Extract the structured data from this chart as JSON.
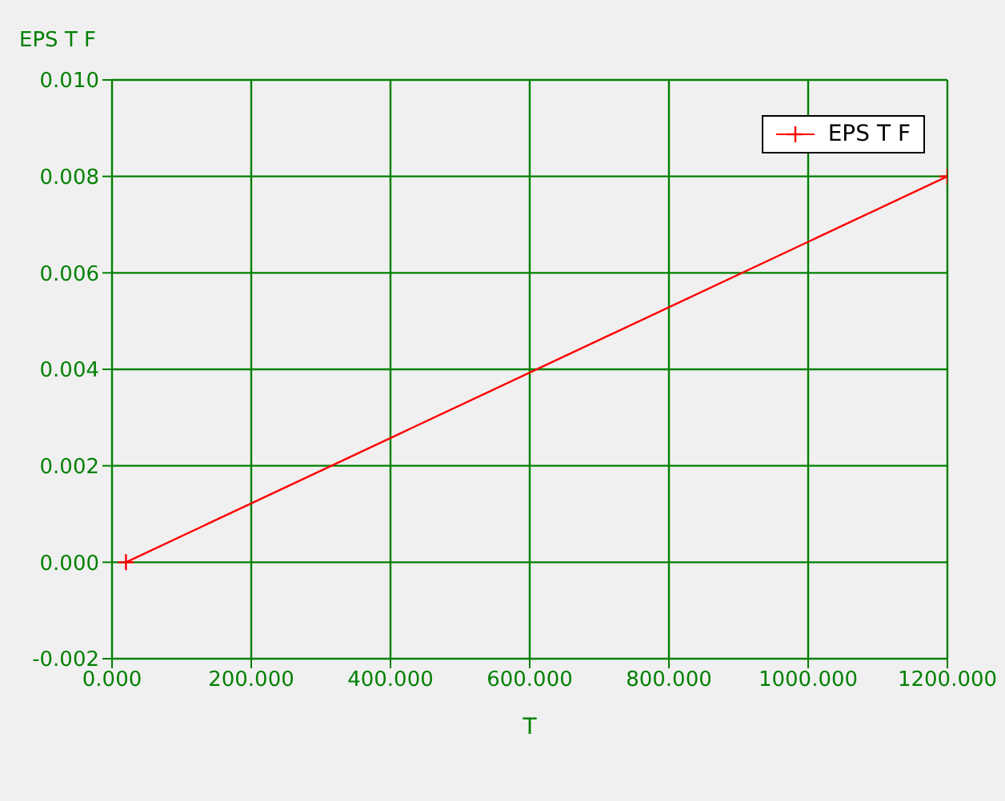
{
  "chart_data": {
    "type": "line",
    "xlabel": "T",
    "ylabel": "EPS T F",
    "x": [
      20,
      1200
    ],
    "series": [
      {
        "name": "EPS T F",
        "color": "#ff0000",
        "values": [
          0,
          0.008
        ]
      }
    ],
    "xlim": [
      0,
      1200
    ],
    "xticks": [
      {
        "value": 0,
        "label": "0.000"
      },
      {
        "value": 200,
        "label": "200.000"
      },
      {
        "value": 400,
        "label": "400.000"
      },
      {
        "value": 600,
        "label": "600.000"
      },
      {
        "value": 800,
        "label": "800.000"
      },
      {
        "value": 1000,
        "label": "1000.000"
      },
      {
        "value": 1200,
        "label": "1200.000"
      }
    ],
    "ylim": [
      -0.002,
      0.01
    ],
    "yticks": [
      {
        "value": -0.002,
        "label": "-0.002"
      },
      {
        "value": 0,
        "label": "0.000"
      },
      {
        "value": 0.002,
        "label": "0.002"
      },
      {
        "value": 0.004,
        "label": "0.004"
      },
      {
        "value": 0.006,
        "label": "0.006"
      },
      {
        "value": 0.008,
        "label": "0.008"
      },
      {
        "value": 0.01,
        "label": "0.010"
      }
    ],
    "grid": true,
    "legend": "top right",
    "marker": "cross",
    "line_style": "solid"
  }
}
